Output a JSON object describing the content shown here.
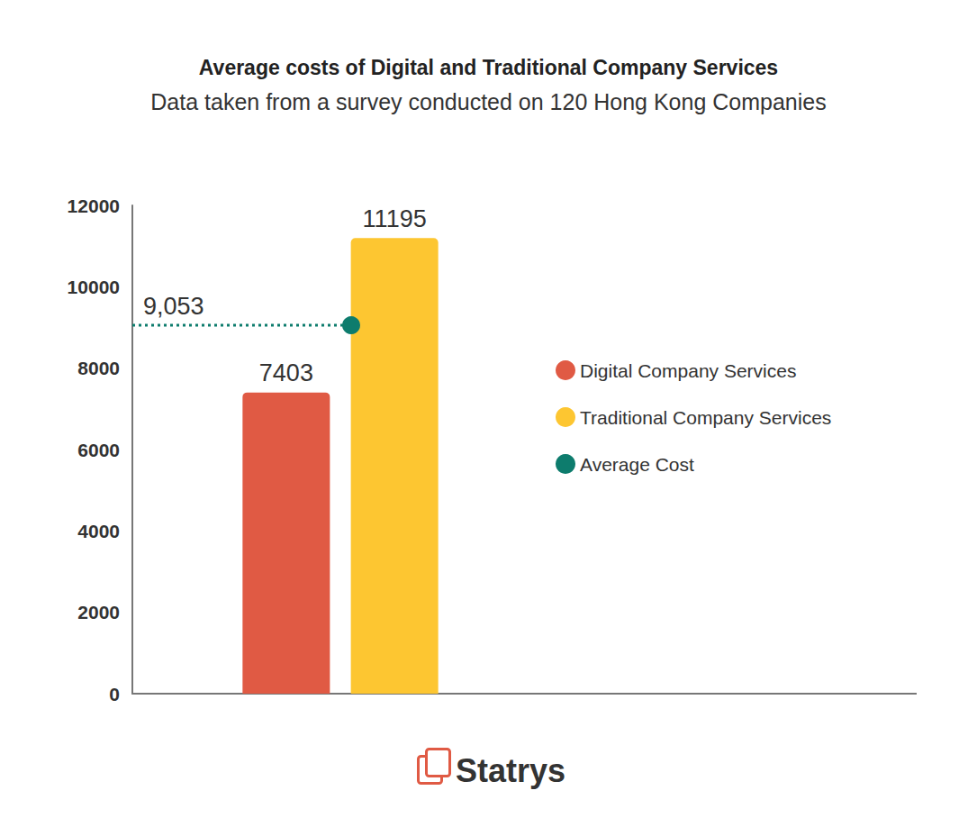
{
  "chart_data": {
    "type": "bar",
    "title": "Average costs of Digital and Traditional Company Services",
    "subtitle": "Data taken from a survey conducted on 120 Hong Kong Companies",
    "categories": [
      null
    ],
    "series": [
      {
        "name": "Digital Company Services",
        "type": "bar",
        "color": "#e05a44",
        "values": [
          7403
        ]
      },
      {
        "name": "Traditional Company Services",
        "type": "bar",
        "color": "#fdc631",
        "values": [
          11195
        ]
      },
      {
        "name": "Average Cost",
        "type": "line",
        "color": "#0d7c6d",
        "marker": "circle",
        "line_style": "dotted",
        "values": [
          9053
        ],
        "value_labels": [
          "9,053"
        ]
      }
    ],
    "ylim": [
      0,
      12000
    ],
    "yticks": [
      0,
      2000,
      4000,
      6000,
      8000,
      10000,
      12000
    ],
    "grid": false,
    "legend": "right",
    "data_labels": true,
    "tick_labels": "y",
    "logo": "Statrys"
  }
}
